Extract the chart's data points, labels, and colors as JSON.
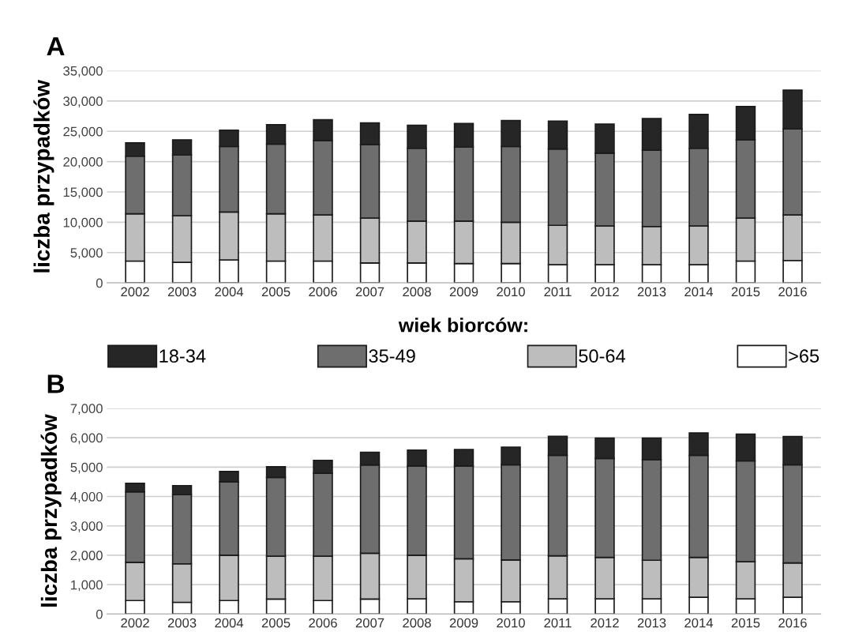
{
  "chart_data": [
    {
      "type": "bar",
      "title": "A",
      "ylabel": "liczba przypadków",
      "stacked": true,
      "legend": "bottom",
      "legend_title": "wiek biorców:",
      "grid": "y",
      "categories": [
        "2002",
        "2003",
        "2004",
        "2005",
        "2006",
        "2007",
        "2008",
        "2009",
        "2010",
        "2011",
        "2012",
        "2013",
        "2014",
        "2015",
        "2016"
      ],
      "ylim": [
        0,
        35000
      ],
      "yticks": [
        {
          "value": 0,
          "label": "0"
        },
        {
          "value": 5000,
          "label": "5,000"
        },
        {
          "value": 10000,
          "label": "10,000"
        },
        {
          "value": 15000,
          "label": "15,000"
        },
        {
          "value": 20000,
          "label": "20,000"
        },
        {
          "value": 25000,
          "label": "25,000"
        },
        {
          "value": 30000,
          "label": "30,000"
        },
        {
          "value": 35000,
          "label": "35,000"
        }
      ],
      "series": [
        {
          "name": ">65",
          "color": "#ffffff",
          "values": [
            3600,
            3400,
            3800,
            3600,
            3600,
            3300,
            3300,
            3200,
            3200,
            3000,
            3000,
            3000,
            3000,
            3600,
            3700
          ]
        },
        {
          "name": "50-64",
          "color": "#bdbdbd",
          "values": [
            7800,
            7700,
            7900,
            7800,
            7600,
            7400,
            6900,
            7000,
            6800,
            6500,
            6400,
            6300,
            6400,
            7100,
            7500
          ]
        },
        {
          "name": "35-49",
          "color": "#6e6e6e",
          "values": [
            9500,
            10000,
            10800,
            11500,
            12300,
            12100,
            12000,
            12200,
            12500,
            12600,
            12000,
            12600,
            12800,
            12900,
            14200
          ]
        },
        {
          "name": "18-34",
          "color": "#262626",
          "values": [
            2200,
            2500,
            2700,
            3200,
            3400,
            3600,
            3800,
            3900,
            4300,
            4600,
            4800,
            5200,
            5600,
            5500,
            6400
          ]
        }
      ]
    },
    {
      "type": "bar",
      "title": "B",
      "ylabel": "liczba przypadków",
      "stacked": true,
      "grid": "y",
      "categories": [
        "2002",
        "2003",
        "2004",
        "2005",
        "2006",
        "2007",
        "2008",
        "2009",
        "2010",
        "2011",
        "2012",
        "2013",
        "2014",
        "2015",
        "2016"
      ],
      "ylim": [
        0,
        7000
      ],
      "yticks": [
        {
          "value": 0,
          "label": "0"
        },
        {
          "value": 1000,
          "label": "1,000"
        },
        {
          "value": 2000,
          "label": "2,000"
        },
        {
          "value": 3000,
          "label": "3,000"
        },
        {
          "value": 4000,
          "label": "4,000"
        },
        {
          "value": 5000,
          "label": "5,000"
        },
        {
          "value": 6000,
          "label": "6,000"
        },
        {
          "value": 7000,
          "label": "7,000"
        }
      ],
      "series": [
        {
          "color": "#ffffff",
          "values": [
            460,
            400,
            460,
            510,
            460,
            510,
            520,
            420,
            420,
            520,
            520,
            520,
            570,
            520,
            570
          ]
        },
        {
          "color": "#bdbdbd",
          "values": [
            1300,
            1310,
            1540,
            1460,
            1510,
            1560,
            1480,
            1460,
            1420,
            1460,
            1410,
            1310,
            1360,
            1260,
            1170
          ]
        },
        {
          "color": "#6e6e6e",
          "values": [
            2400,
            2350,
            2500,
            2680,
            2820,
            3000,
            3040,
            3160,
            3240,
            3420,
            3360,
            3420,
            3470,
            3430,
            3340
          ]
        },
        {
          "color": "#262626",
          "values": [
            290,
            310,
            350,
            360,
            440,
            430,
            540,
            560,
            600,
            650,
            700,
            740,
            760,
            910,
            960
          ]
        }
      ]
    }
  ]
}
